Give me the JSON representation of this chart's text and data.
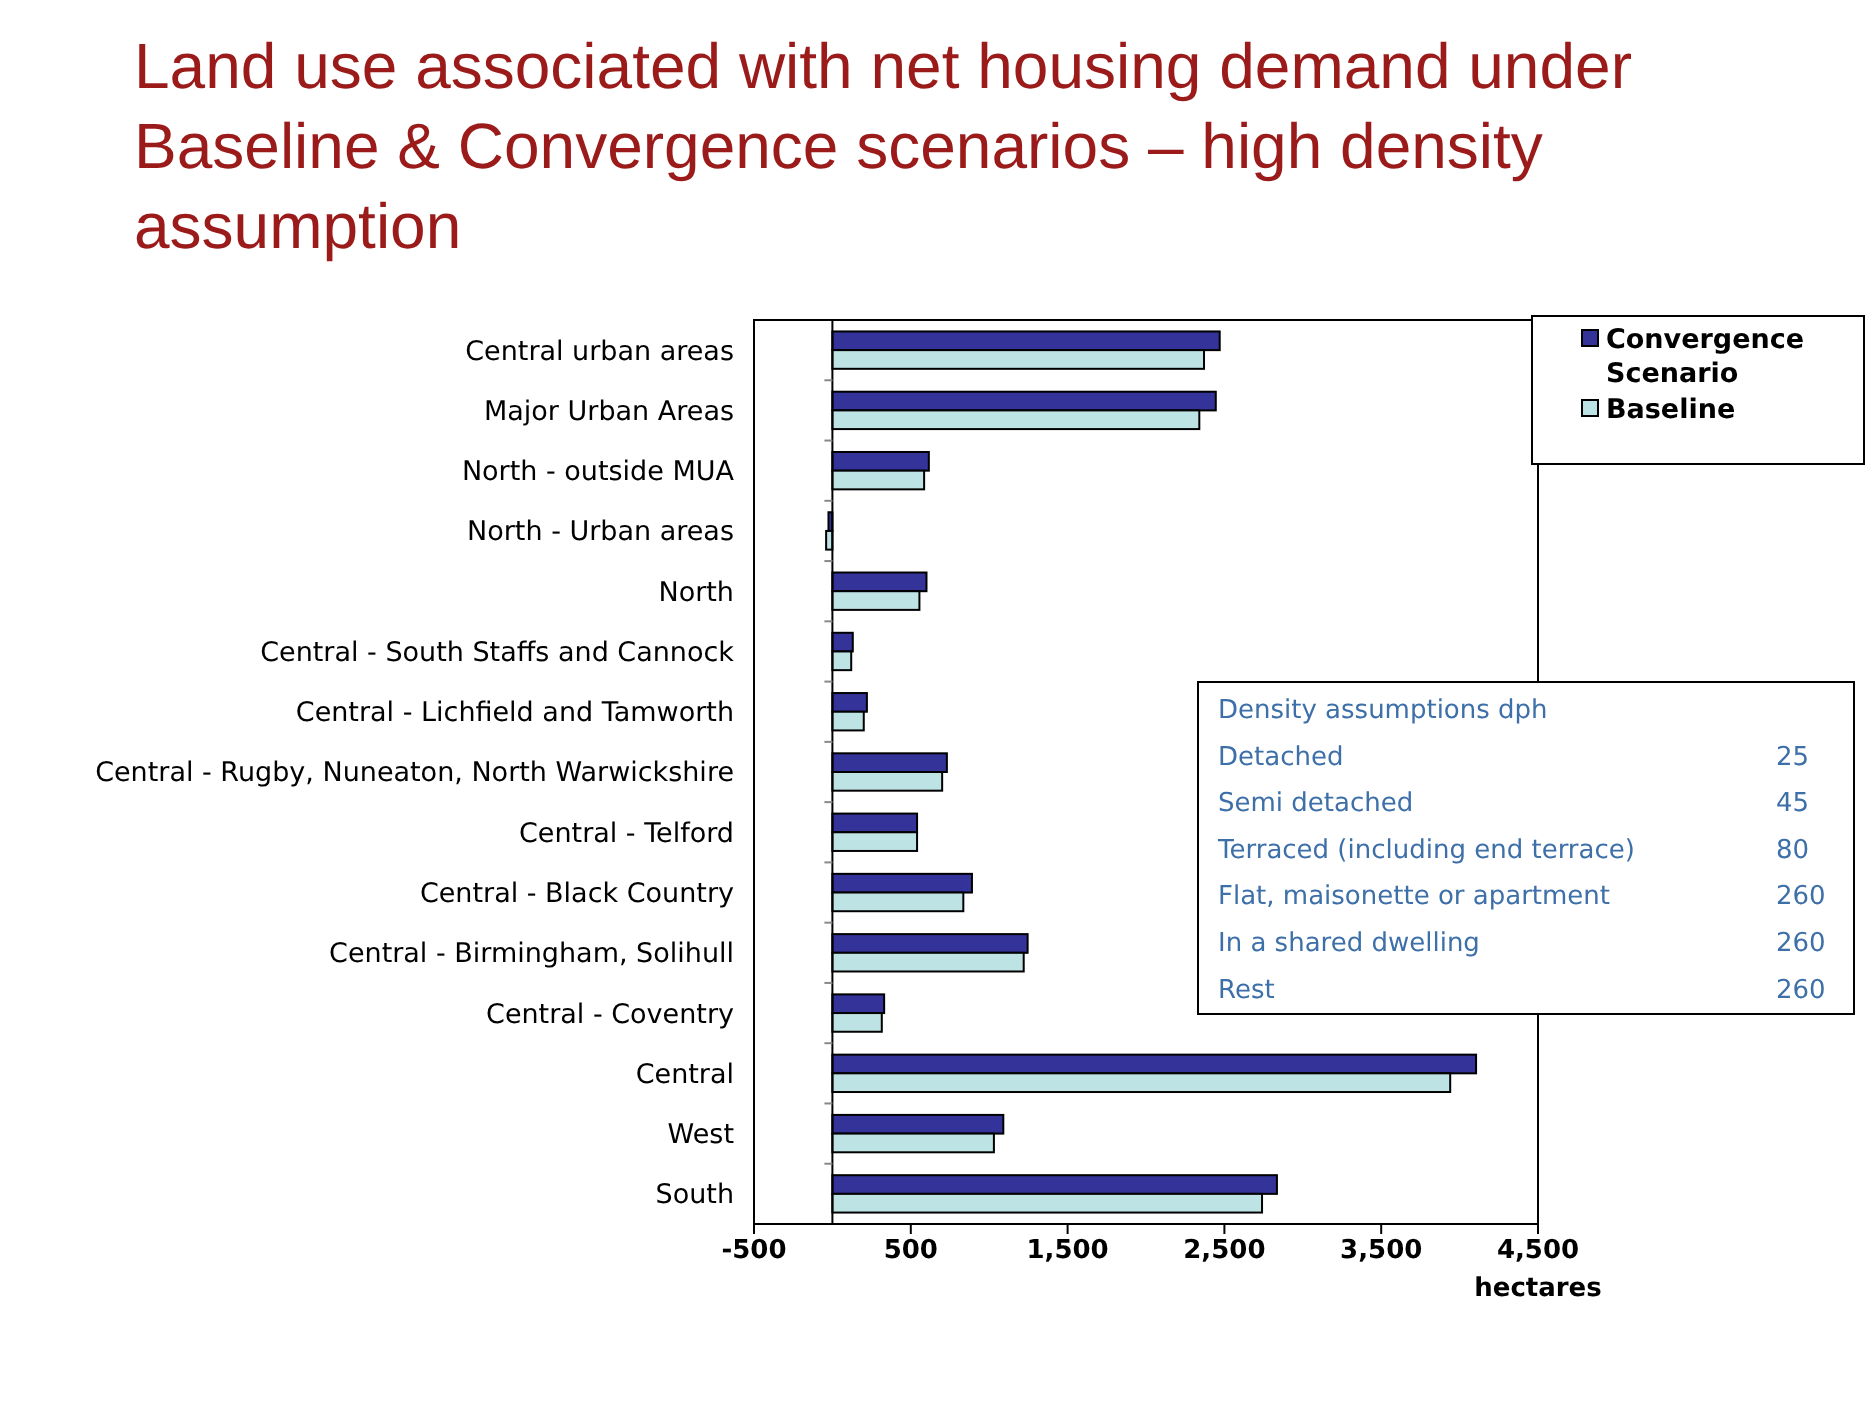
{
  "chart_data": {
    "type": "bar",
    "orientation": "horizontal",
    "title": "Land use associated with net housing demand under Baseline & Convergence scenarios – high density assumption",
    "xlabel": "hectares",
    "categories": [
      "Central urban areas",
      "Major Urban Areas",
      "North  - outside MUA",
      "North  - Urban areas",
      "North",
      "Central - South Staffs and Cannock",
      "Central - Lichfield and Tamworth",
      "Central - Rugby, Nuneaton, North Warwickshire",
      "Central - Telford",
      "Central - Black Country",
      "Central - Birmingham, Solihull",
      "Central - Coventry",
      "Central",
      "West",
      "South"
    ],
    "series": [
      {
        "name": "Convergence Scenario",
        "color": "#333399",
        "values": [
          2470,
          2445,
          615,
          -25,
          600,
          130,
          220,
          730,
          540,
          890,
          1245,
          330,
          4105,
          1090,
          2835
        ]
      },
      {
        "name": "Baseline",
        "color": "#bde3e5",
        "values": [
          2370,
          2340,
          585,
          -40,
          555,
          120,
          200,
          700,
          540,
          835,
          1220,
          315,
          3940,
          1030,
          2740
        ]
      }
    ],
    "xlim": [
      -500,
      4500
    ],
    "xticks": [
      {
        "value": -500,
        "label": "-500"
      },
      {
        "value": 500,
        "label": "500"
      },
      {
        "value": 1500,
        "label": "1,500"
      },
      {
        "value": 2500,
        "label": "2,500"
      },
      {
        "value": 3500,
        "label": "3,500"
      },
      {
        "value": 4500,
        "label": "4,500"
      }
    ],
    "legend": "top right",
    "grid": false,
    "annotations": [
      "Density assumptions dph",
      "Detached 25",
      "Semi detached 45",
      "Terraced (including end terrace) 80",
      "Flat, maisonette or apartment 260",
      "In a shared dwelling 260",
      "Rest 260"
    ]
  }
}
